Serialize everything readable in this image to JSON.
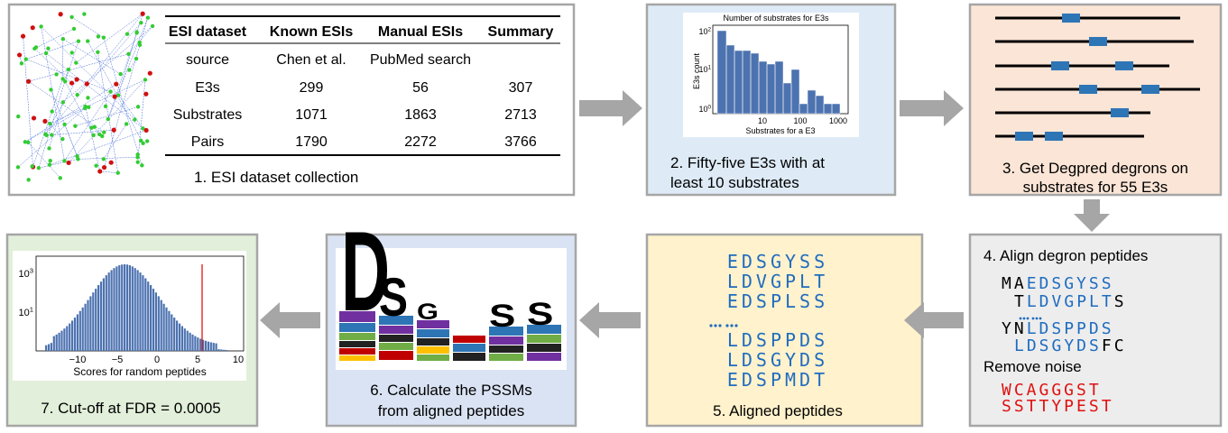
{
  "panel1": {
    "table": {
      "header": [
        "ESI dataset",
        "Known ESIs",
        "Manual ESIs",
        "Summary"
      ],
      "rows": [
        [
          "source",
          "Chen et al.",
          "PubMed search"
        ],
        [
          "E3s",
          "299",
          "56",
          "307"
        ],
        [
          "Substrates",
          "1071",
          "1863",
          "2713"
        ],
        [
          "Pairs",
          "1790",
          "2272",
          "3766"
        ]
      ]
    },
    "caption": "1. ESI dataset collection"
  },
  "panel2": {
    "chart": {
      "title": "Number of substrates for E3s",
      "ylabel": "E3s count",
      "xlabel": "Substrates for a E3",
      "xticks": [
        "10",
        "100",
        "1000"
      ],
      "yticks": [
        {
          "base": "10",
          "exponent": "2"
        },
        {
          "base": "10",
          "exponent": "1"
        },
        {
          "base": "10",
          "exponent": "0"
        }
      ]
    },
    "caption": [
      "2. Fifty-five E3s with at",
      "least 10 substrates"
    ]
  },
  "panel3": {
    "caption": [
      "3. Get Degpred degrons on",
      "substrates for 55 E3s"
    ]
  },
  "panel4": {
    "title": "4. Align degron peptides",
    "rows": [
      [
        "MA",
        "EDSGYSS"
      ],
      [
        "T",
        "LDVGPLT",
        "S"
      ],
      [
        "YN",
        "LDSPPDS"
      ],
      [
        "LDSGYDS",
        "FC"
      ]
    ],
    "noise_title": "Remove noise",
    "noise": [
      "WCAGGGST",
      "SSTTYPEST"
    ]
  },
  "panel5": {
    "peptides": [
      "EDSGYSS",
      "LDVGPLT",
      "EDSPLSS",
      "LDSPPDS",
      "LDSGYDS",
      "EDSPMDT"
    ],
    "caption": "5. Aligned peptides"
  },
  "panel6": {
    "logo": [
      "D",
      "S",
      "G",
      "S",
      "S"
    ],
    "caption": [
      "6. Calculate the PSSMs",
      "from aligned peptides"
    ]
  },
  "panel7": {
    "chart": {
      "yticks": [
        {
          "base": "10",
          "exponent": "3"
        },
        {
          "base": "10",
          "exponent": "1"
        }
      ],
      "xticks": [
        "−10",
        "−5",
        "0",
        "5",
        "10"
      ],
      "xlabel": "Scores for random peptides"
    },
    "caption": "7. Cut-off at FDR = 0.0005"
  }
}
